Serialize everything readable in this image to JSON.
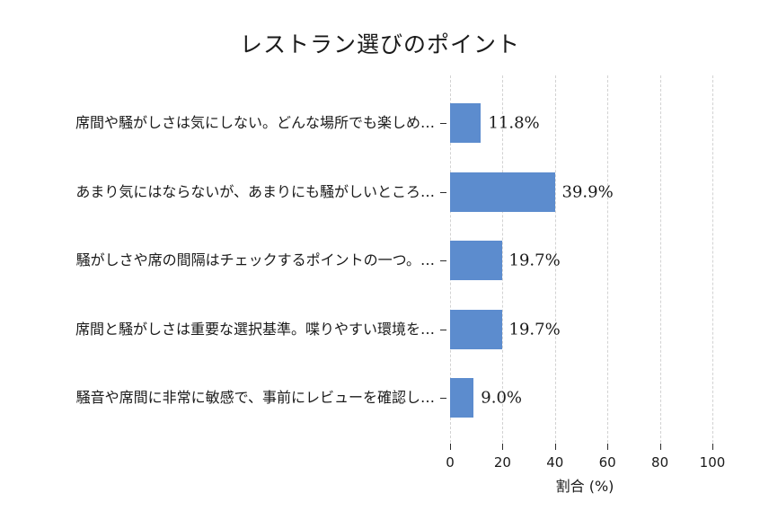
{
  "figure": {
    "background": "#ffffff"
  },
  "chart_data": {
    "type": "bar",
    "orientation": "horizontal",
    "title": "レストラン選びのポイント",
    "xlabel": "割合 (%)",
    "ylabel": "",
    "categories": [
      "席間や騒がしさは気にしない。どんな場所でも楽しめ…",
      "あまり気にはならないが、あまりにも騒がしいところ…",
      "騒がしさや席の間隔はチェックするポイントの一つ。…",
      "席間と騒がしさは重要な選択基準。喋りやすい環境を…",
      "騒音や席間に非常に敏感で、事前にレビューを確認し…"
    ],
    "values": [
      11.8,
      39.9,
      19.7,
      19.7,
      9.0
    ],
    "value_labels": [
      "11.8%",
      "39.9%",
      "19.7%",
      "19.7%",
      "9.0%"
    ],
    "xticks": [
      0,
      20,
      40,
      60,
      80,
      100
    ],
    "xlim": [
      0,
      103
    ],
    "grid": {
      "axis": "x",
      "style": "dashed",
      "color": "#d2d2d2"
    },
    "legend": "none",
    "bar_color": "#5C8CCE",
    "text_color": "#1a1a1a",
    "tick_color": "#2b2b2b"
  }
}
